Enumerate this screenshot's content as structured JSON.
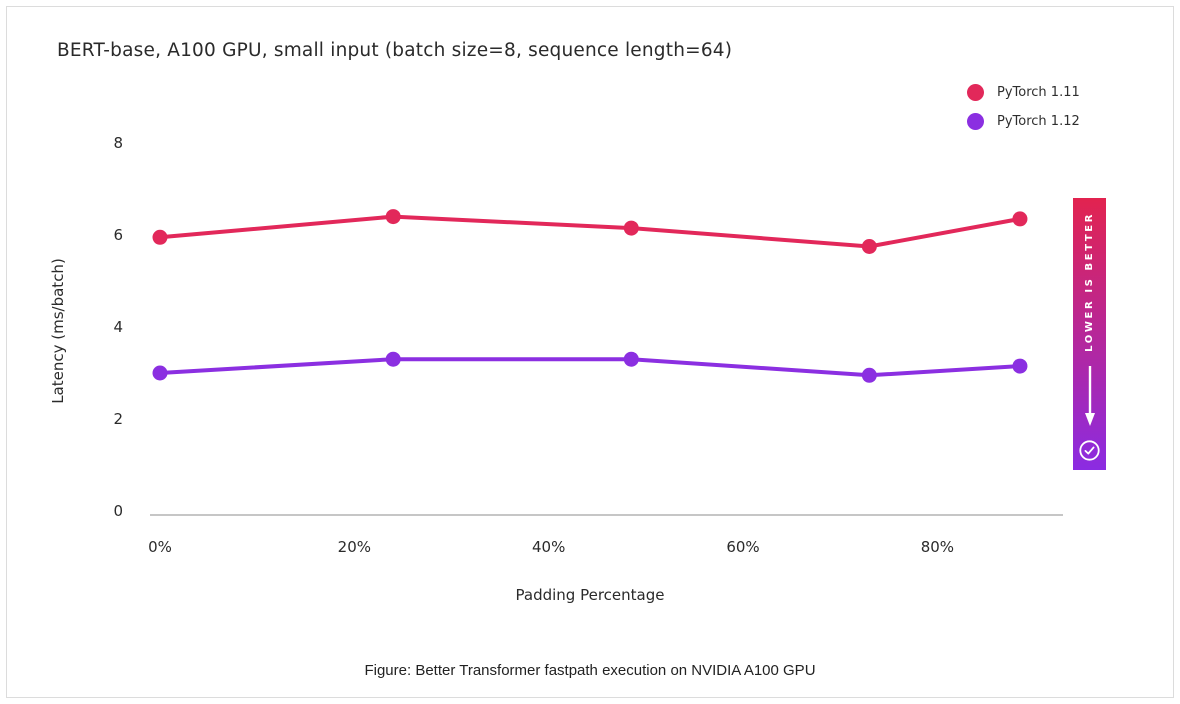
{
  "title": "BERT-base, A100 GPU, small input (batch size=8, sequence length=64)",
  "legend": {
    "items": [
      {
        "label": "PyTorch 1.11",
        "color": "#e2285a"
      },
      {
        "label": "PyTorch 1.12",
        "color": "#8b2fe1"
      }
    ]
  },
  "banner": {
    "text": "LOWER IS BETTER",
    "arrow_icon": "arrow-down",
    "check_icon": "check-circle",
    "gradient_top": "#e2234f",
    "gradient_bottom": "#8b2be2"
  },
  "caption": "Figure: Better Transformer fastpath execution on NVIDIA A100 GPU",
  "chart_data": {
    "type": "line",
    "title": "BERT-base, A100 GPU, small input (batch size=8, sequence length=64)",
    "xlabel": "Padding Percentage",
    "ylabel": "Latency (ms/batch)",
    "x": [
      0,
      24,
      48.5,
      73,
      88.5
    ],
    "series": [
      {
        "name": "PyTorch 1.11",
        "color": "#e2285a",
        "values": [
          5.95,
          6.4,
          6.15,
          5.75,
          6.35
        ]
      },
      {
        "name": "PyTorch 1.12",
        "color": "#8b2fe1",
        "values": [
          3.0,
          3.3,
          3.3,
          2.95,
          3.15
        ]
      }
    ],
    "xticks": {
      "values": [
        0,
        20,
        40,
        60,
        80
      ],
      "labels": [
        "0%",
        "20%",
        "40%",
        "60%",
        "80%"
      ]
    },
    "yticks": [
      0,
      2,
      4,
      6,
      8
    ],
    "xlim": [
      0,
      93
    ],
    "ylim": [
      0,
      8
    ],
    "grid": false,
    "legend_position": "top-right",
    "axis_color": "#c6c6c6"
  }
}
